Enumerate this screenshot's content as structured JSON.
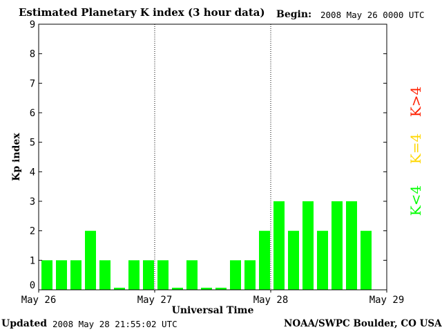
{
  "header": {
    "title": "Estimated Planetary K index (3 hour data)",
    "begin_label": "Begin:",
    "begin_value": "2008 May 26 0000 UTC"
  },
  "footer": {
    "updated_label": "Updated",
    "updated_value": "2008 May 28 21:55:02 UTC",
    "credit": "NOAA/SWPC Boulder, CO USA"
  },
  "colors": {
    "bar": "#00ff00",
    "legend_low": "#00ff00",
    "legend_equal": "#ffd700",
    "legend_high": "#ff2000"
  },
  "chart_data": {
    "type": "bar",
    "title": "Estimated Planetary K index (3 hour data)",
    "xlabel": "Universal Time",
    "ylabel": "Kp index",
    "ylim": [
      0,
      9
    ],
    "yticks": [
      "0",
      "1",
      "2",
      "3",
      "4",
      "5",
      "6",
      "7",
      "8",
      "9"
    ],
    "xtick_labels": [
      "May 26",
      "May 27",
      "May 28",
      "May 29"
    ],
    "bins_per_day": 8,
    "days": 3,
    "values": [
      1,
      1,
      1,
      2,
      1,
      0,
      1,
      1,
      1,
      0,
      1,
      0,
      0,
      1,
      1,
      2,
      3,
      2,
      3,
      2,
      3,
      3,
      2
    ],
    "legend": [
      "K<4",
      "K=4",
      "K>4"
    ],
    "grid": "dotted vertical lines at day boundaries"
  }
}
